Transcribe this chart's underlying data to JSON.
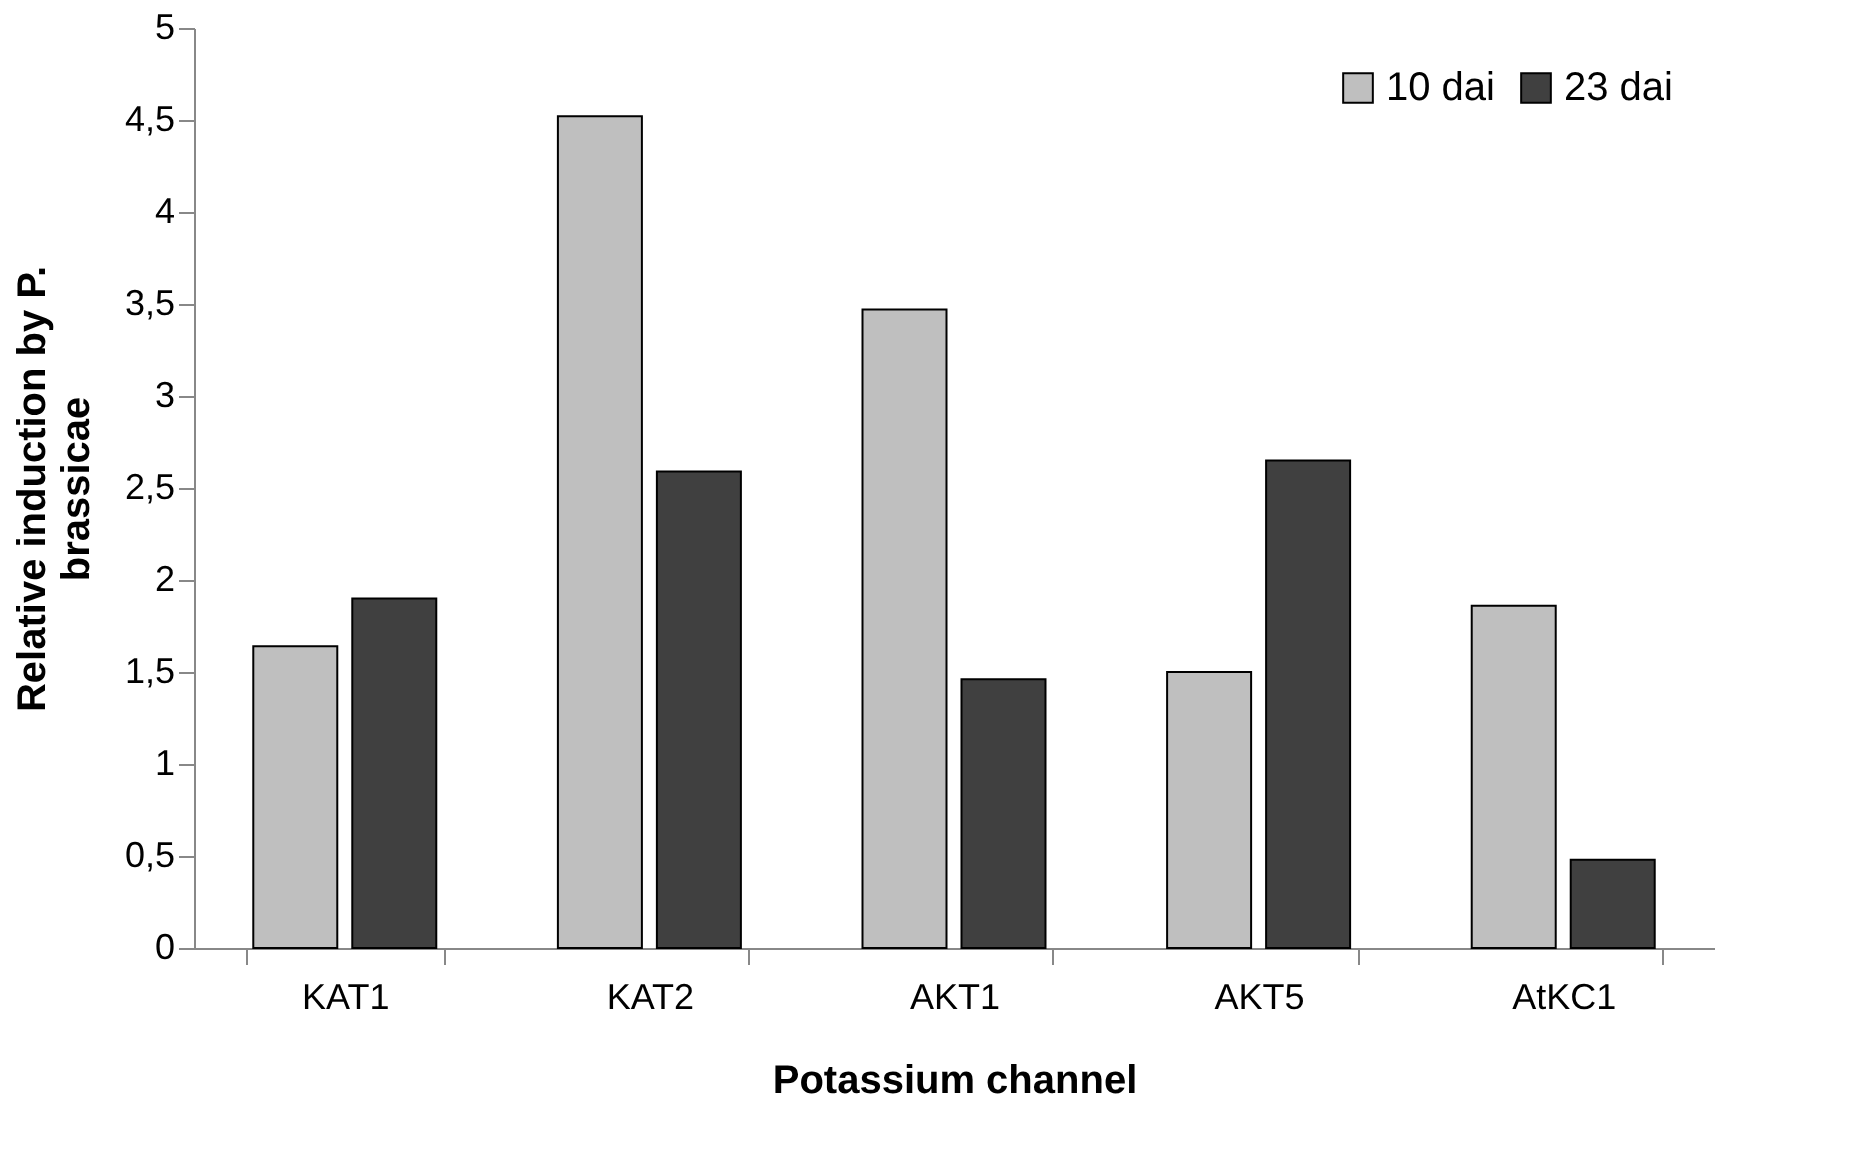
{
  "chart_data": {
    "type": "bar",
    "xlabel": "Potassium channel",
    "ylabel": "Relative induction by P. brassicae",
    "categories": [
      "KAT1",
      "KAT2",
      "AKT1",
      "AKT5",
      "AtKC1"
    ],
    "series": [
      {
        "name": "10 dai",
        "color": "#bfbfbf",
        "values": [
          1.64,
          4.52,
          3.47,
          1.5,
          1.86
        ]
      },
      {
        "name": "23 dai",
        "color": "#404040",
        "values": [
          1.9,
          2.59,
          1.46,
          2.65,
          0.48
        ]
      }
    ],
    "ylim": [
      0,
      5
    ],
    "yticks": [
      0,
      {
        "value": 0.5,
        "label": "0,5"
      },
      1,
      {
        "value": 1.5,
        "label": "1,5"
      },
      2,
      {
        "value": 2.5,
        "label": "2,5"
      },
      3,
      {
        "value": 3.5,
        "label": "3,5"
      },
      4,
      {
        "value": 4.5,
        "label": "4,5"
      },
      5
    ],
    "grid": false,
    "legend": "top right"
  }
}
